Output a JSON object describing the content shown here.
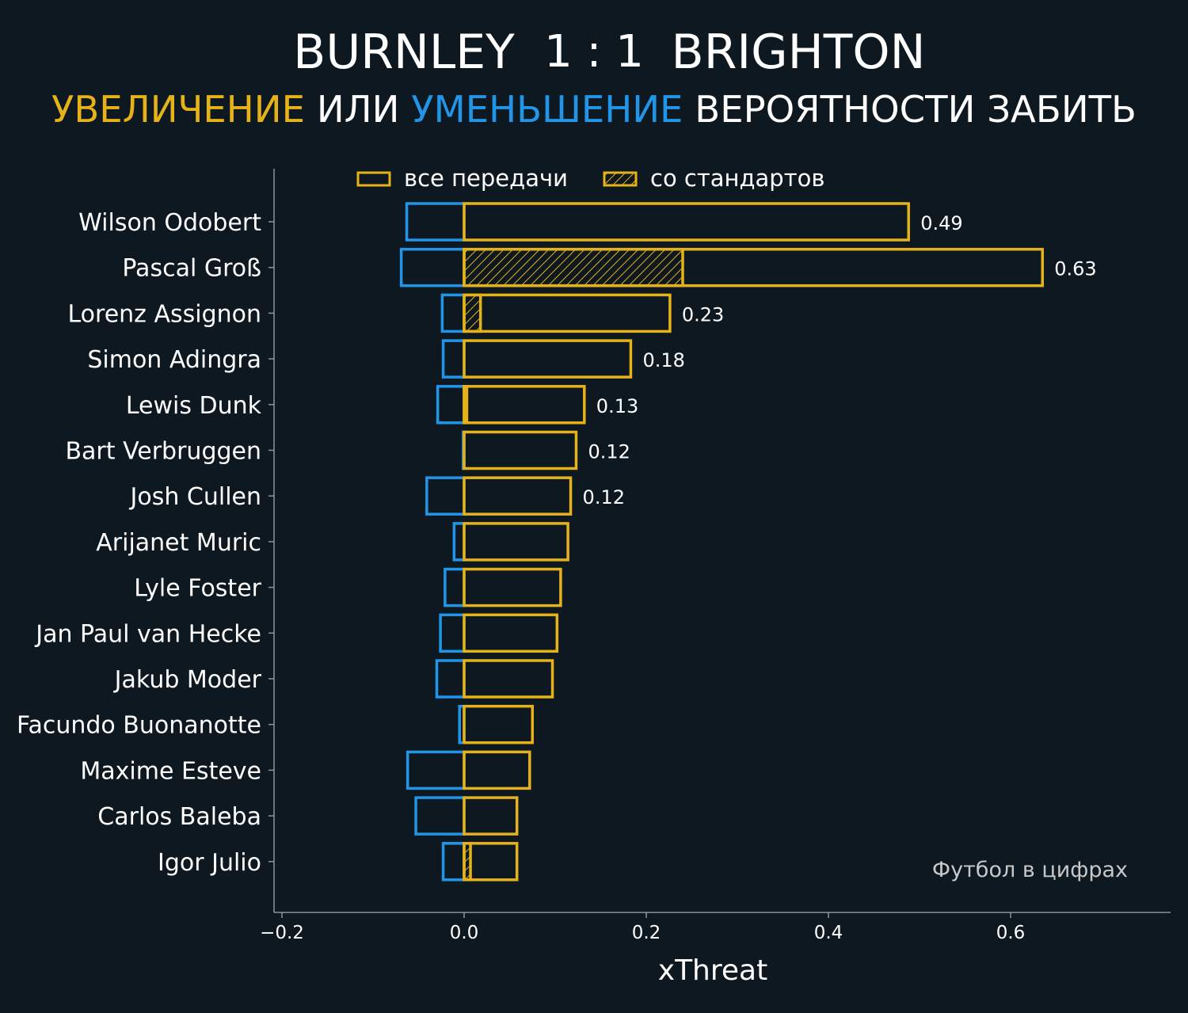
{
  "colors": {
    "background": "#0e1821",
    "increase": "#e6b219",
    "decrease": "#2196e8",
    "text": "#ffffff",
    "axis": "#8a969e",
    "watermark": "#c8c8c8"
  },
  "title": {
    "home": "BURNLEY",
    "score": "1 : 1",
    "away": "BRIGHTON"
  },
  "subtitle": {
    "increase": "УВЕЛИЧЕНИЕ",
    "or": " ИЛИ ",
    "decrease": "УМЕНЬШЕНИЕ",
    "rest": " ВЕРОЯТНОСТИ ЗАБИТЬ"
  },
  "watermark": "Футбол в цифрах",
  "chart_data": {
    "type": "bar",
    "orientation": "horizontal",
    "xlabel": "xThreat",
    "xlim": [
      -0.209,
      0.775
    ],
    "xticks": [
      -0.2,
      0.0,
      0.2,
      0.4,
      0.6
    ],
    "xtick_labels": [
      "−0.2",
      "0.0",
      "0.2",
      "0.4",
      "0.6"
    ],
    "legend": {
      "placement": "top",
      "entries": [
        "все передачи",
        "со стандартов"
      ]
    },
    "categories": [
      "Wilson Odobert",
      "Pascal Groß",
      "Lorenz Assignon",
      "Simon Adingra",
      "Lewis Dunk",
      "Bart Verbruggen",
      "Josh Cullen",
      "Arijanet Muric",
      "Lyle Foster",
      "Jan Paul van Hecke",
      "Jakub Moder",
      "Facundo Buonanotte",
      "Maxime Esteve",
      "Carlos Baleba",
      "Igor Julio"
    ],
    "series": [
      {
        "name": "все передачи (positive)",
        "values": [
          0.488,
          0.635,
          0.226,
          0.183,
          0.132,
          0.123,
          0.117,
          0.114,
          0.106,
          0.102,
          0.097,
          0.075,
          0.072,
          0.058,
          0.058
        ]
      },
      {
        "name": "со стандартов (positive)",
        "values": [
          0,
          0.24,
          0.018,
          0,
          0.003,
          0,
          0,
          0,
          0,
          0,
          0,
          0,
          0,
          0,
          0.007
        ]
      },
      {
        "name": "negative",
        "values": [
          -0.063,
          -0.069,
          -0.024,
          -0.023,
          -0.029,
          -0.001,
          -0.041,
          -0.011,
          -0.021,
          -0.026,
          -0.03,
          -0.005,
          -0.062,
          -0.053,
          -0.023
        ]
      }
    ],
    "data_labels": [
      "0.49",
      "0.63",
      "0.23",
      "0.18",
      "0.13",
      "0.12",
      "0.12"
    ]
  }
}
